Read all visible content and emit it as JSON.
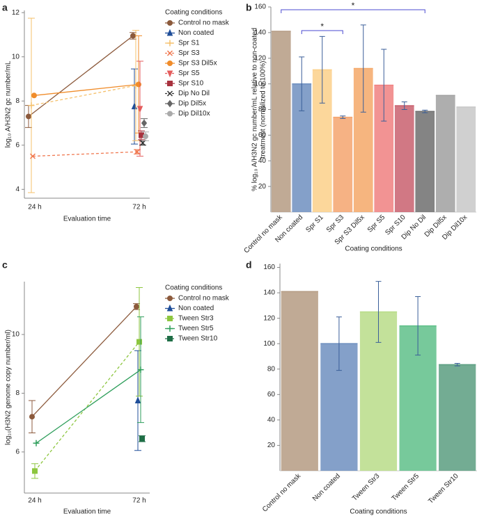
{
  "chart_data": [
    {
      "type": "line",
      "panel": "a",
      "ylabel": "log₁₀ A/H3N2 gc number/mL",
      "xlabel": "Evaluation time",
      "categories": [
        "24 h",
        "72 h"
      ],
      "ylim": [
        3.6,
        12.1
      ],
      "yticks": [
        4,
        6,
        8,
        10,
        12
      ],
      "legend_title": "Coating conditions",
      "series": [
        {
          "name": "Control no mask",
          "color": "#8c5a3c",
          "marker": "circle",
          "dashed": false,
          "values": [
            7.3,
            10.95
          ],
          "errors": [
            0.5,
            0.15
          ]
        },
        {
          "name": "Non coated",
          "color": "#1f4e99",
          "marker": "triangle",
          "dashed": false,
          "values": [
            null,
            7.75
          ],
          "errors": [
            null,
            1.7
          ]
        },
        {
          "name": "Spr S1",
          "color": "#f5c06b",
          "marker": "plus",
          "dashed": true,
          "values": [
            7.8,
            8.7
          ],
          "errors": [
            3.95,
            2.5
          ]
        },
        {
          "name": "Spr S3",
          "color": "#f07850",
          "marker": "x",
          "dashed": true,
          "values": [
            5.5,
            5.7
          ],
          "errors": [
            null,
            0.1
          ]
        },
        {
          "name": "Spr S3 Dil5x",
          "color": "#f08c2a",
          "marker": "circle",
          "dashed": false,
          "values": [
            8.25,
            8.75
          ],
          "errors": [
            null,
            2.2
          ]
        },
        {
          "name": "Spr S5",
          "color": "#e45c5c",
          "marker": "tri-down",
          "dashed": true,
          "values": [
            null,
            7.65
          ],
          "errors": [
            null,
            2.15
          ]
        },
        {
          "name": "Spr S10",
          "color": "#a8323e",
          "marker": "square",
          "dashed": false,
          "values": [
            null,
            6.45
          ],
          "errors": [
            null,
            0.2
          ]
        },
        {
          "name": "Dip No Dil",
          "color": "#333333",
          "marker": "x",
          "dashed": true,
          "values": [
            null,
            6.1
          ],
          "errors": [
            null,
            0.1
          ]
        },
        {
          "name": "Dip Dil5x",
          "color": "#666666",
          "marker": "diamond",
          "dashed": false,
          "values": [
            null,
            7.0
          ],
          "errors": [
            null,
            0.2
          ]
        },
        {
          "name": "Dip Dil10x",
          "color": "#aaaaaa",
          "marker": "circle",
          "dashed": false,
          "values": [
            null,
            6.4
          ],
          "errors": [
            null,
            0.2
          ]
        }
      ]
    },
    {
      "type": "bar",
      "panel": "b",
      "ylabel": [
        "% log₁₀ A/H3N2 gc number/mL relative to non-coated",
        "treatment (normalized to 100%)"
      ],
      "xlabel": "Coating conditions",
      "categories": [
        "Control no mask",
        "Non coated",
        "Spr S1",
        "Spr S3",
        "Spr S3 Dil5x",
        "Spr S5",
        "Spr S10",
        "Dip No Dil",
        "Dip Dil5x",
        "Dip Dil10x"
      ],
      "values": [
        141,
        100,
        111,
        74,
        112,
        99,
        83,
        78.5,
        91,
        82
      ],
      "errors": [
        null,
        21,
        26,
        1,
        34,
        28,
        3,
        1,
        null,
        null
      ],
      "colors": [
        "#b59b83",
        "#6e8fbf",
        "#fcd08a",
        "#f4a46e",
        "#f5a868",
        "#f08080",
        "#c9606e",
        "#6e6e6e",
        "#a0a0a0",
        "#c8c8c8"
      ],
      "ylim": [
        0,
        160
      ],
      "yticks": [
        20,
        40,
        60,
        80,
        100,
        120,
        140,
        160
      ],
      "annotations": [
        {
          "text": "*",
          "from": 0,
          "to": 7
        },
        {
          "text": "*",
          "from": 1,
          "to": 3
        }
      ]
    },
    {
      "type": "line",
      "panel": "c",
      "ylabel": "log₁₀(H3N2 genome copy number/ml)",
      "xlabel": "Evaluation time",
      "categories": [
        "24 h",
        "72 h"
      ],
      "ylim": [
        4.6,
        11.8
      ],
      "yticks": [
        6,
        8,
        10
      ],
      "legend_title": "Coating conditions",
      "series": [
        {
          "name": "Control no mask",
          "color": "#8c5a3c",
          "marker": "circle",
          "dashed": false,
          "values": [
            7.2,
            10.95
          ],
          "errors": [
            0.55,
            0.1
          ]
        },
        {
          "name": "Non coated",
          "color": "#1f4e99",
          "marker": "triangle",
          "dashed": false,
          "values": [
            null,
            7.75
          ],
          "errors": [
            null,
            1.7
          ]
        },
        {
          "name": "Tween Str3",
          "color": "#8dc63f",
          "marker": "square",
          "dashed": true,
          "values": [
            5.35,
            9.75
          ],
          "errors": [
            0.25,
            1.85
          ]
        },
        {
          "name": "Tween Str5",
          "color": "#2e9e5b",
          "marker": "plus",
          "dashed": false,
          "values": [
            6.3,
            8.8
          ],
          "errors": [
            null,
            1.8
          ]
        },
        {
          "name": "Tween Str10",
          "color": "#1f6e46",
          "marker": "square",
          "dashed": true,
          "values": [
            null,
            6.45
          ],
          "errors": [
            null,
            0.1
          ]
        }
      ]
    },
    {
      "type": "bar",
      "panel": "d",
      "xlabel": "Coating conditions",
      "categories": [
        "Control no mask",
        "Non coated",
        "Tween Str3",
        "Tween Str5",
        "Tween Str10"
      ],
      "values": [
        141,
        100,
        125,
        114,
        83.5
      ],
      "errors": [
        null,
        21,
        24,
        23,
        1
      ],
      "colors": [
        "#b59b83",
        "#6e8fbf",
        "#b8dc88",
        "#5fbf8a",
        "#5a9e80"
      ],
      "ylim": [
        0,
        163
      ],
      "yticks": [
        20,
        40,
        60,
        80,
        100,
        120,
        140,
        160
      ]
    }
  ]
}
